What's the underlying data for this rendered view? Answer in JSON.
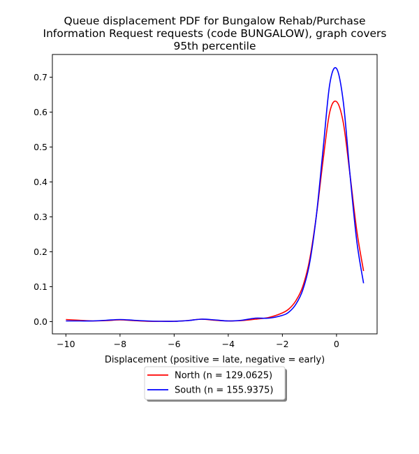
{
  "chart_data": {
    "type": "line",
    "title": [
      "Queue displacement PDF for Bungalow Rehab/Purchase",
      "Information Request  requests (code BUNGALOW), graph covers",
      "95th percentile"
    ],
    "xlabel": "Displacement (positive = late, negative = early)",
    "ylabel": "",
    "xlim": [
      -10.5,
      1.5
    ],
    "ylim": [
      -0.035,
      0.765
    ],
    "xticks": [
      -10,
      -8,
      -6,
      -4,
      -2,
      0
    ],
    "xtick_labels": [
      "−10",
      "−8",
      "−6",
      "−4",
      "−2",
      "0"
    ],
    "yticks": [
      0.0,
      0.1,
      0.2,
      0.3,
      0.4,
      0.5,
      0.6,
      0.7
    ],
    "ytick_labels": [
      "0.0",
      "0.1",
      "0.2",
      "0.3",
      "0.4",
      "0.5",
      "0.6",
      "0.7"
    ],
    "grid": false,
    "legend_position": "below-center",
    "series": [
      {
        "name": "North (n = 129.0625)",
        "color": "#ff0000",
        "x": [
          -10,
          -9.5,
          -9,
          -8.5,
          -8,
          -7.5,
          -7,
          -6.5,
          -6,
          -5.5,
          -5,
          -4.5,
          -4,
          -3.5,
          -3,
          -2.5,
          -2,
          -1.75,
          -1.5,
          -1.25,
          -1,
          -0.75,
          -0.5,
          -0.25,
          0,
          0.25,
          0.5,
          0.75,
          1
        ],
        "y": [
          0.006,
          0.004,
          0.002,
          0.003,
          0.005,
          0.003,
          0.001,
          0.001,
          0.001,
          0.003,
          0.007,
          0.004,
          0.002,
          0.003,
          0.007,
          0.012,
          0.025,
          0.037,
          0.06,
          0.1,
          0.175,
          0.3,
          0.46,
          0.6,
          0.63,
          0.57,
          0.42,
          0.26,
          0.145
        ]
      },
      {
        "name": "South (n = 155.9375)",
        "color": "#0000ff",
        "x": [
          -10,
          -9.5,
          -9,
          -8.5,
          -8,
          -7.5,
          -7,
          -6.5,
          -6,
          -5.5,
          -5,
          -4.5,
          -4,
          -3.5,
          -3,
          -2.5,
          -2,
          -1.75,
          -1.5,
          -1.25,
          -1,
          -0.75,
          -0.5,
          -0.25,
          0,
          0.25,
          0.5,
          0.75,
          1
        ],
        "y": [
          0.002,
          0.002,
          0.002,
          0.004,
          0.006,
          0.004,
          0.002,
          0.001,
          0.001,
          0.003,
          0.007,
          0.005,
          0.002,
          0.004,
          0.01,
          0.01,
          0.018,
          0.028,
          0.05,
          0.09,
          0.165,
          0.3,
          0.49,
          0.68,
          0.725,
          0.63,
          0.42,
          0.23,
          0.11
        ]
      }
    ]
  }
}
